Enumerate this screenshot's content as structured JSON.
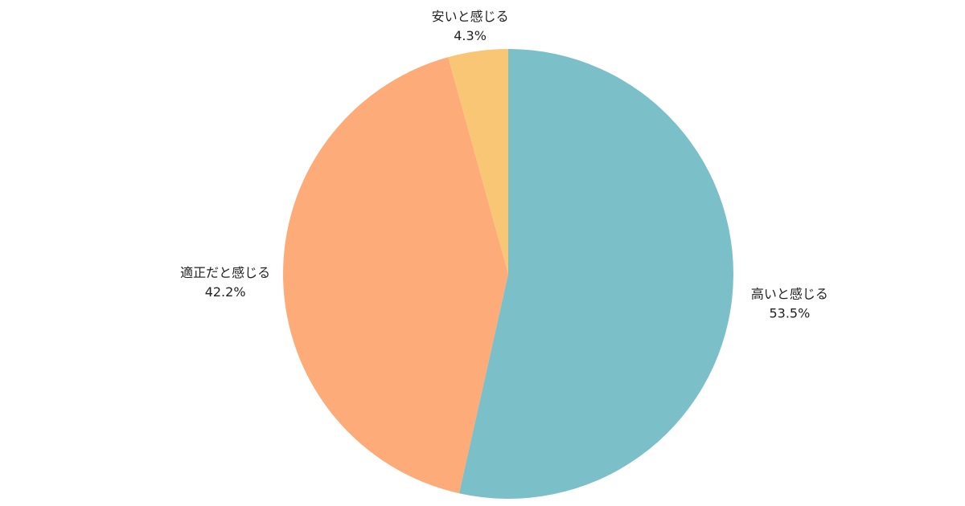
{
  "chart_data": {
    "type": "pie",
    "title": "",
    "start_angle": "top",
    "direction": "clockwise",
    "legend": "none",
    "slices": [
      {
        "label": "高いと感じる",
        "value": 53.5,
        "value_label": "53.5%",
        "color": "#7BBFC9"
      },
      {
        "label": "適正だと感じる",
        "value": 42.2,
        "value_label": "42.2%",
        "color": "#FDAB78"
      },
      {
        "label": "安いと感じる",
        "value": 4.3,
        "value_label": "4.3%",
        "color": "#F9C675"
      }
    ]
  }
}
